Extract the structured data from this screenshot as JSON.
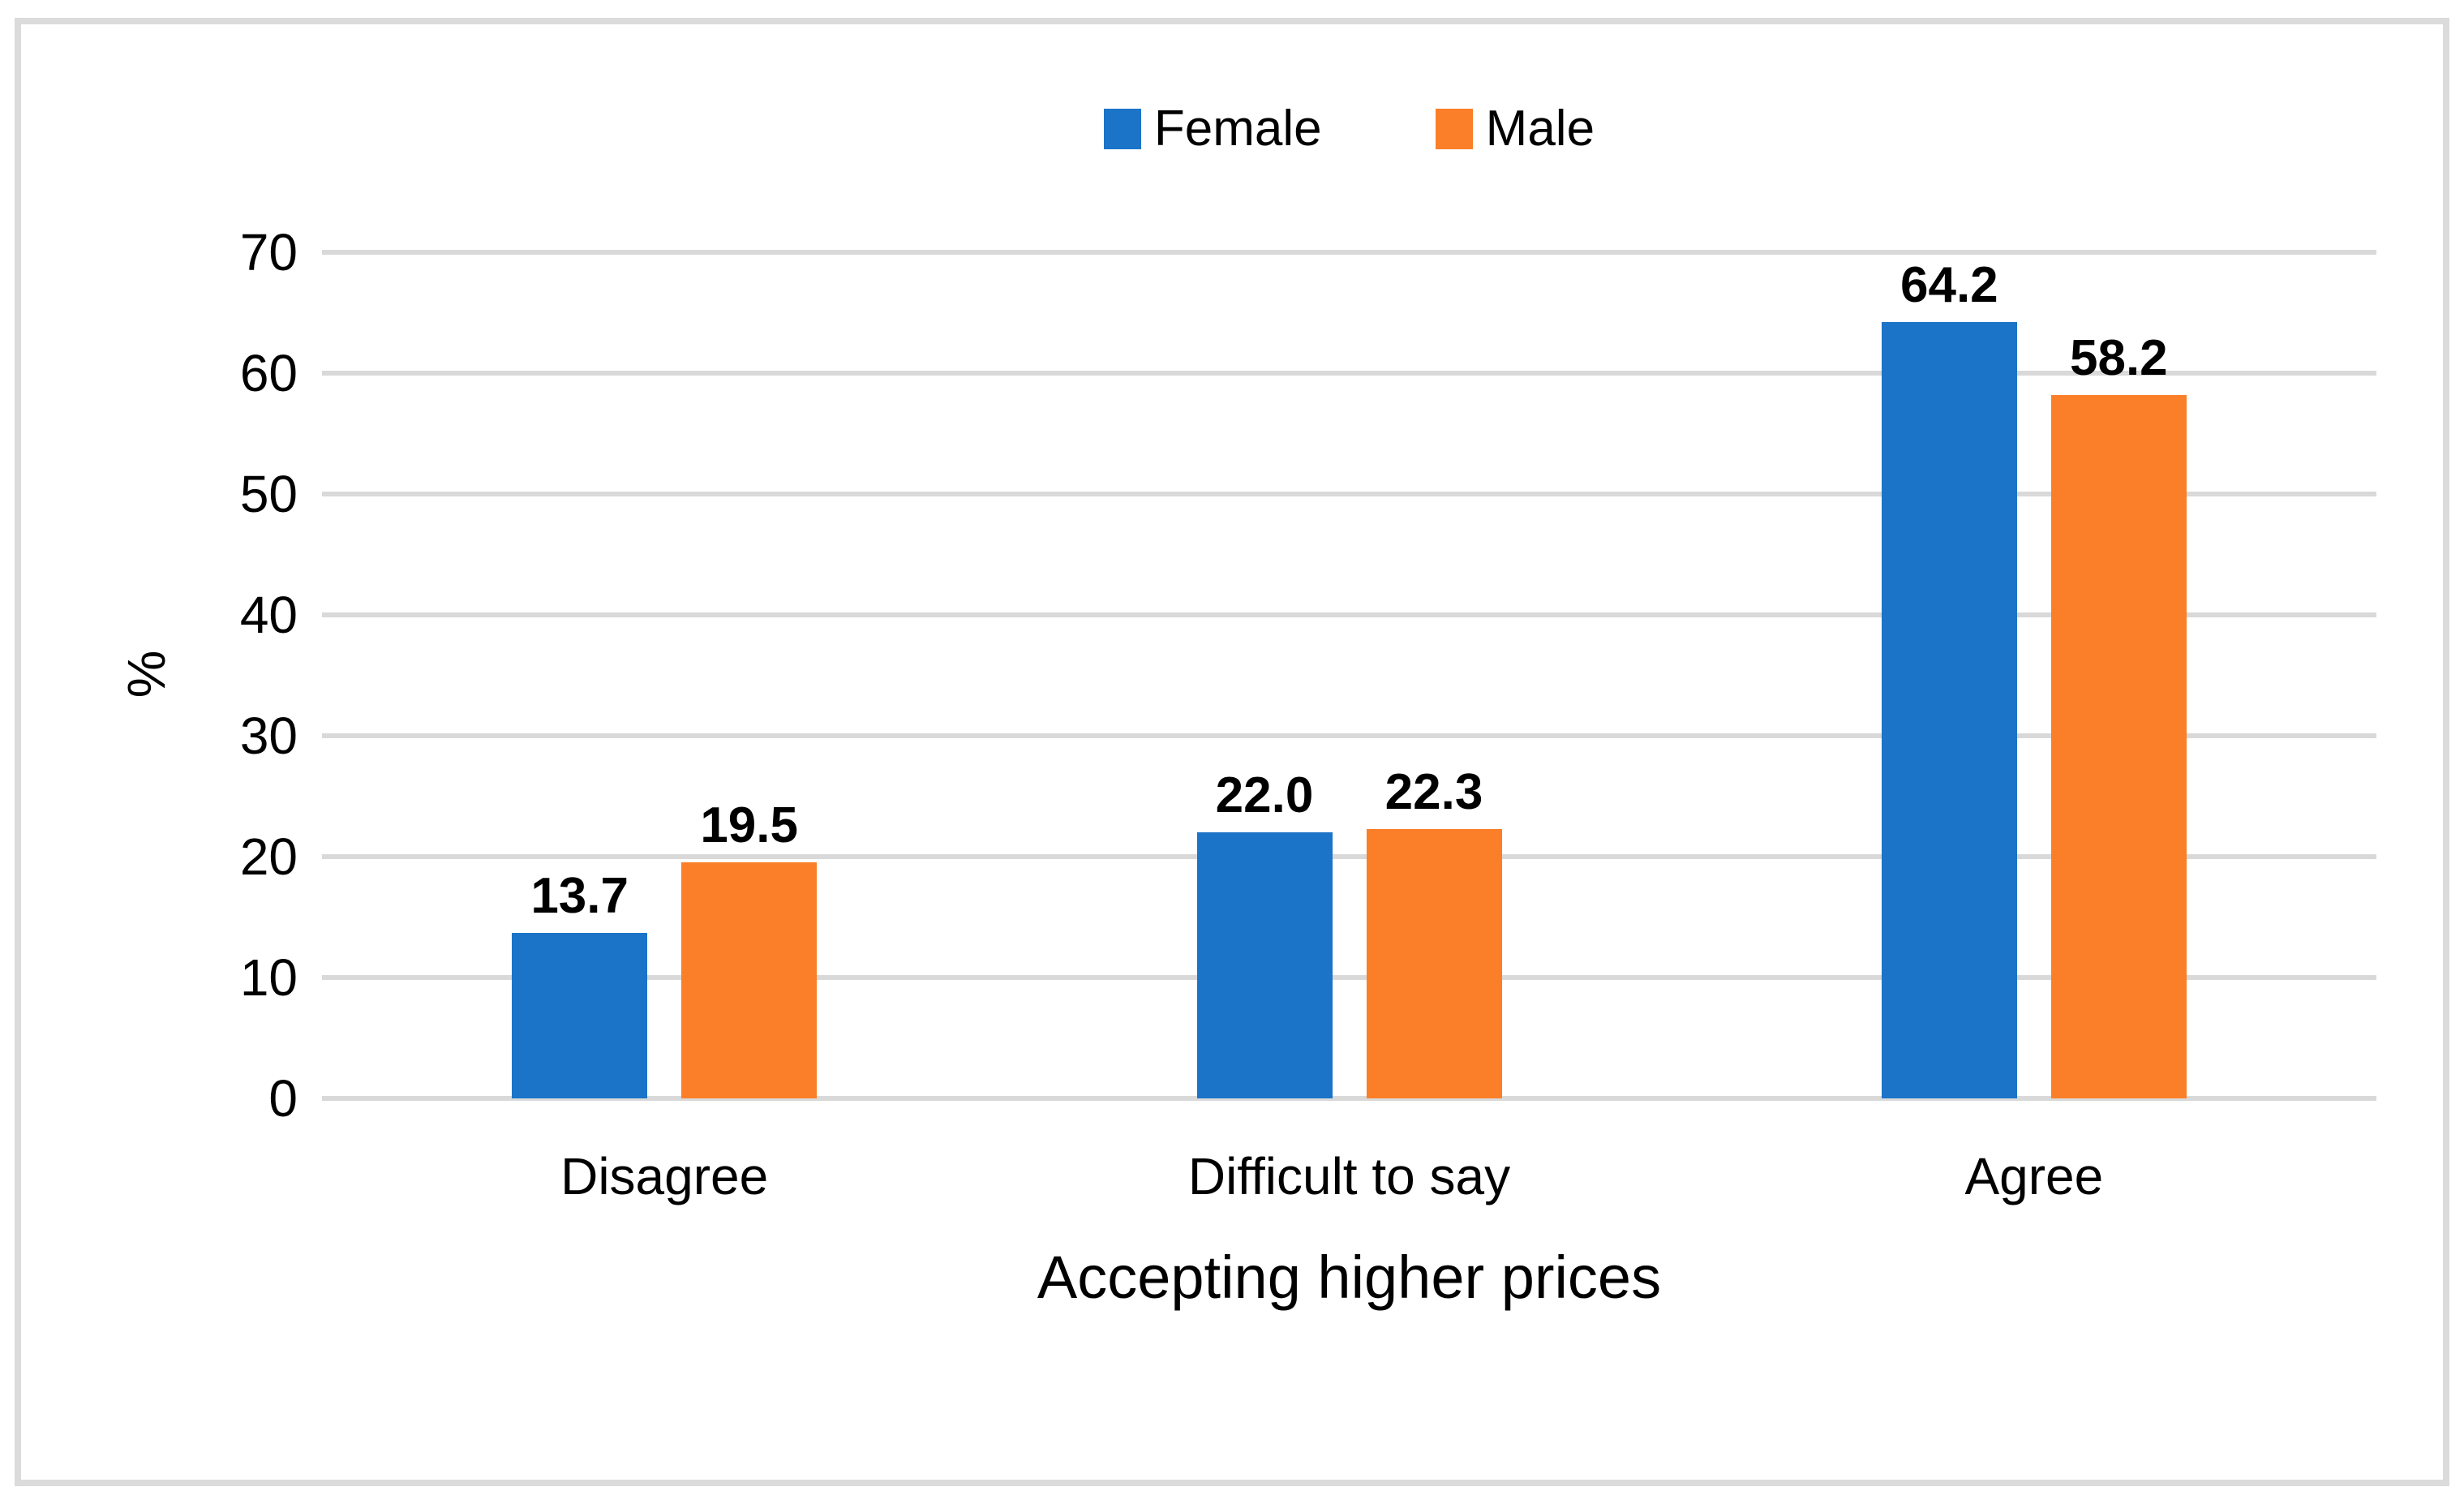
{
  "chart_data": {
    "type": "bar",
    "title": "",
    "categories": [
      "Disagree",
      "Difficult to say",
      "Agree"
    ],
    "series": [
      {
        "name": "Female",
        "color": "#1B74C8",
        "values": [
          13.7,
          22.0,
          64.2
        ],
        "value_labels": [
          "13.7",
          "22.0",
          "64.2"
        ]
      },
      {
        "name": "Male",
        "color": "#FB7E28",
        "values": [
          19.5,
          22.3,
          58.2
        ],
        "value_labels": [
          "19.5",
          "22.3",
          "58.2"
        ]
      }
    ],
    "xlabel": "Accepting higher prices",
    "ylabel": "%",
    "ylim": [
      0,
      70
    ],
    "yticks": [
      0,
      10,
      20,
      30,
      40,
      50,
      60,
      70
    ],
    "grid": true,
    "legend_position": "top-center",
    "colors": {
      "gridline": "#D9D9D9",
      "axis_line": "#D9D9D9",
      "frame_border": "#DBDBDB",
      "text": "#000000",
      "background": "#FFFFFF"
    }
  }
}
